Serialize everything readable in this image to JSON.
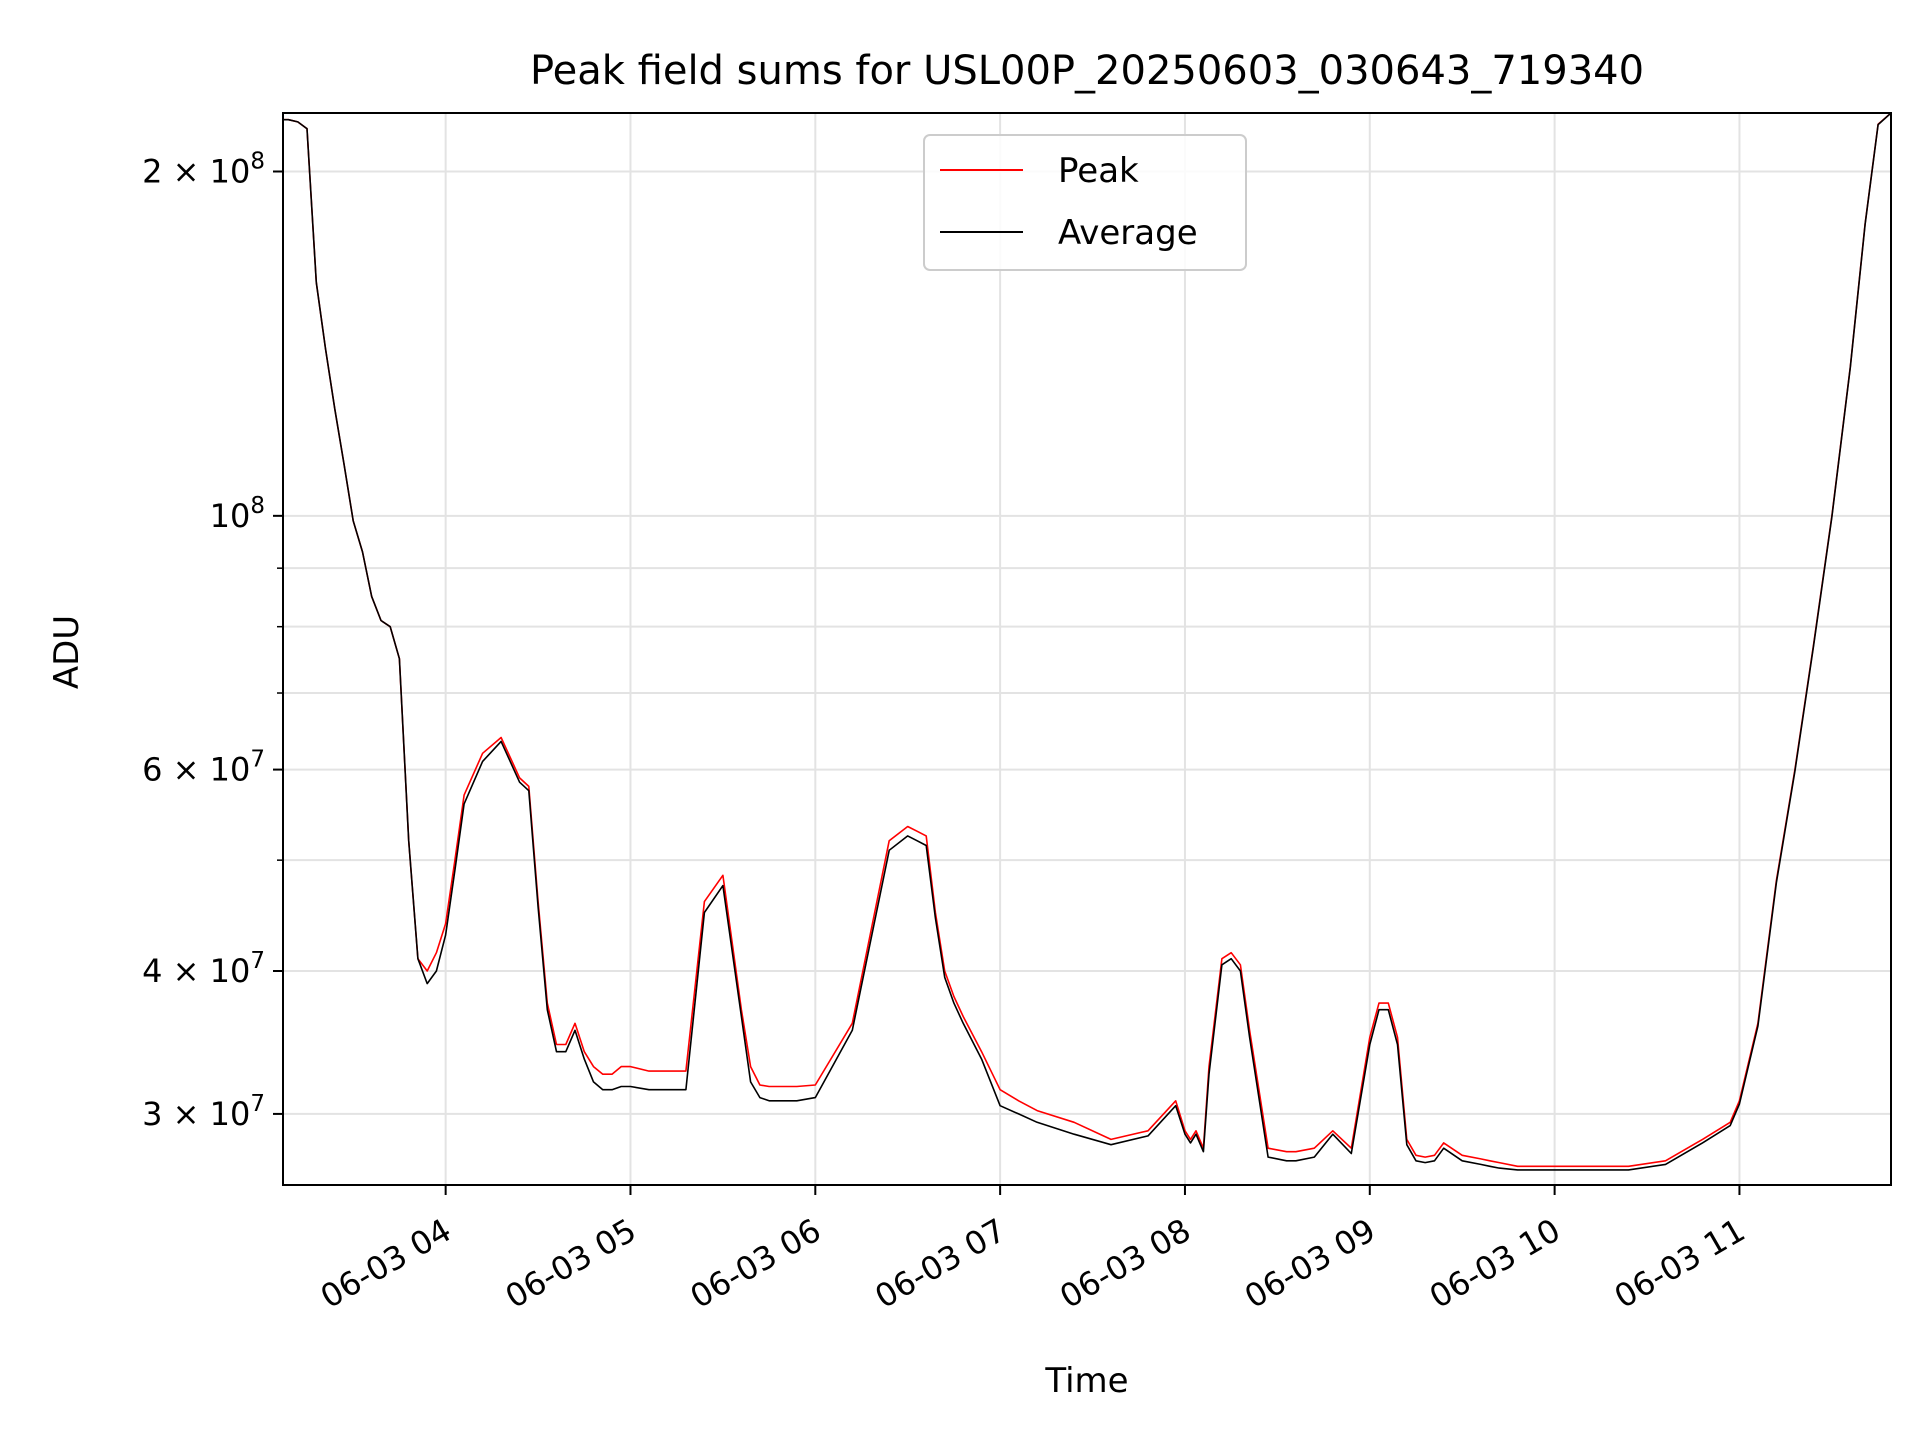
{
  "chart_data": {
    "type": "line",
    "title": "Peak field sums for USL00P_20250603_030643_719340",
    "xlabel": "Time",
    "ylabel": "ADU",
    "yscale": "log",
    "ylim": [
      26000000,
      225000000
    ],
    "xlim_hours": [
      3.12,
      11.82
    ],
    "grid": true,
    "legend_position": "top-center",
    "x_ticks": [
      {
        "hour": 4,
        "label": "06-03 04"
      },
      {
        "hour": 5,
        "label": "06-03 05"
      },
      {
        "hour": 6,
        "label": "06-03 06"
      },
      {
        "hour": 7,
        "label": "06-03 07"
      },
      {
        "hour": 8,
        "label": "06-03 08"
      },
      {
        "hour": 9,
        "label": "06-03 09"
      },
      {
        "hour": 10,
        "label": "06-03 10"
      },
      {
        "hour": 11,
        "label": "06-03 11"
      }
    ],
    "y_ticks": [
      {
        "value": 30000000,
        "base": "3",
        "times": "×",
        "exp_base": "10",
        "exp": "7"
      },
      {
        "value": 40000000,
        "base": "4",
        "times": "×",
        "exp_base": "10",
        "exp": "7"
      },
      {
        "value": 60000000,
        "base": "6",
        "times": "×",
        "exp_base": "10",
        "exp": "7"
      },
      {
        "value": 100000000,
        "base": "",
        "times": "",
        "exp_base": "10",
        "exp": "8"
      },
      {
        "value": 200000000,
        "base": "2",
        "times": "×",
        "exp_base": "10",
        "exp": "8"
      }
    ],
    "y_minor_ticks": [
      50000000,
      70000000,
      80000000,
      90000000
    ],
    "x_hours": [
      3.12,
      3.15,
      3.2,
      3.25,
      3.3,
      3.35,
      3.4,
      3.45,
      3.5,
      3.55,
      3.6,
      3.65,
      3.7,
      3.75,
      3.8,
      3.85,
      3.9,
      3.95,
      4.0,
      4.05,
      4.1,
      4.2,
      4.3,
      4.4,
      4.45,
      4.5,
      4.55,
      4.6,
      4.65,
      4.7,
      4.75,
      4.8,
      4.85,
      4.9,
      4.95,
      5.0,
      5.1,
      5.2,
      5.3,
      5.4,
      5.5,
      5.6,
      5.65,
      5.7,
      5.75,
      5.8,
      5.85,
      5.9,
      6.0,
      6.2,
      6.4,
      6.5,
      6.55,
      6.6,
      6.65,
      6.7,
      6.75,
      6.8,
      6.9,
      7.0,
      7.1,
      7.2,
      7.4,
      7.6,
      7.8,
      7.95,
      8.0,
      8.03,
      8.06,
      8.1,
      8.13,
      8.2,
      8.25,
      8.3,
      8.35,
      8.45,
      8.55,
      8.6,
      8.7,
      8.8,
      8.9,
      9.0,
      9.05,
      9.1,
      9.15,
      9.2,
      9.25,
      9.3,
      9.35,
      9.4,
      9.5,
      9.6,
      9.65,
      9.7,
      9.8,
      10.0,
      10.2,
      10.4,
      10.6,
      10.8,
      10.95,
      11.0,
      11.1,
      11.2,
      11.3,
      11.4,
      11.5,
      11.6,
      11.68,
      11.75,
      11.82
    ],
    "series": [
      {
        "name": "Peak",
        "color": "#ff0000",
        "values": [
          222000000,
          222000000,
          221000000,
          218000000,
          160000000,
          140000000,
          124000000,
          111000000,
          99000000,
          93000000,
          85000000,
          81000000,
          80000000,
          75000000,
          52000000,
          41000000,
          40000000,
          41500000,
          44000000,
          50000000,
          57000000,
          62000000,
          64000000,
          59000000,
          58000000,
          46000000,
          37500000,
          34500000,
          34500000,
          36000000,
          34000000,
          33000000,
          32500000,
          32500000,
          33000000,
          33000000,
          32700000,
          32700000,
          32700000,
          46000000,
          48500000,
          37000000,
          33000000,
          31800000,
          31700000,
          31700000,
          31700000,
          31700000,
          31800000,
          36000000,
          52000000,
          53500000,
          53000000,
          52500000,
          45000000,
          40000000,
          38000000,
          36500000,
          34000000,
          31500000,
          30800000,
          30200000,
          29500000,
          28500000,
          29000000,
          30800000,
          29000000,
          28500000,
          29000000,
          28000000,
          33000000,
          41000000,
          41500000,
          40500000,
          35500000,
          28000000,
          27800000,
          27800000,
          28000000,
          29000000,
          28000000,
          35000000,
          37500000,
          37500000,
          35000000,
          28500000,
          27600000,
          27500000,
          27600000,
          28300000,
          27600000,
          27400000,
          27300000,
          27200000,
          27000000,
          27000000,
          27000000,
          27000000,
          27300000,
          28500000,
          29500000,
          30800000,
          36000000,
          48000000,
          60000000,
          77000000,
          100000000,
          135000000,
          180000000,
          220000000,
          225000000
        ]
      },
      {
        "name": "Average",
        "color": "#000000",
        "values": [
          222000000,
          222000000,
          221000000,
          218000000,
          160000000,
          140000000,
          124000000,
          111000000,
          99000000,
          93000000,
          85000000,
          81000000,
          80000000,
          75000000,
          52000000,
          41000000,
          39000000,
          40000000,
          43000000,
          49000000,
          56000000,
          61000000,
          63500000,
          58500000,
          57500000,
          45500000,
          37000000,
          34000000,
          34000000,
          35500000,
          33500000,
          32000000,
          31500000,
          31500000,
          31700000,
          31700000,
          31500000,
          31500000,
          31500000,
          45000000,
          47500000,
          36500000,
          32000000,
          31000000,
          30800000,
          30800000,
          30800000,
          30800000,
          31000000,
          35500000,
          51000000,
          52500000,
          52000000,
          51500000,
          44500000,
          39500000,
          37500000,
          36000000,
          33500000,
          30500000,
          30000000,
          29500000,
          28800000,
          28200000,
          28700000,
          30500000,
          28800000,
          28300000,
          28800000,
          27800000,
          32500000,
          40500000,
          41000000,
          40000000,
          35000000,
          27500000,
          27300000,
          27300000,
          27500000,
          28800000,
          27700000,
          34500000,
          37000000,
          37000000,
          34500000,
          28200000,
          27300000,
          27200000,
          27300000,
          28000000,
          27300000,
          27100000,
          27000000,
          26900000,
          26800000,
          26800000,
          26800000,
          26800000,
          27100000,
          28300000,
          29300000,
          30600000,
          35800000,
          47800000,
          59800000,
          76800000,
          99800000,
          134800000,
          179800000,
          219800000,
          225000000
        ]
      }
    ]
  }
}
